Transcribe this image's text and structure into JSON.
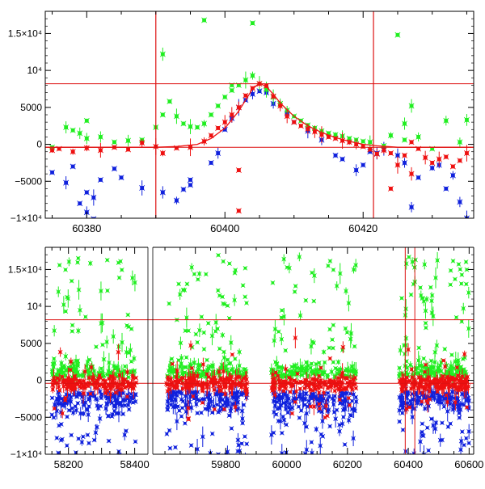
{
  "colors": {
    "green": "#22ee22",
    "red": "#ee1111",
    "blue": "#1122dd",
    "axis": "#000000",
    "refline": "#dd1111"
  },
  "chart_data": [
    {
      "type": "scatter",
      "panel": "top",
      "xlim": [
        60374,
        60436
      ],
      "ylim": [
        -10000,
        18000
      ],
      "x_ticks": [
        60380,
        60400,
        60420
      ],
      "x_tick_labels": [
        "60380",
        "60400",
        "60420"
      ],
      "y_ticks": [
        -10000,
        -5000,
        0,
        5000,
        10000,
        15000
      ],
      "y_tick_labels": [
        "−1×10⁴",
        "−5000",
        "0",
        "5000",
        "10⁴",
        "1.5×10⁴"
      ],
      "hlines": [
        8200,
        -400
      ],
      "vlines": [
        60390,
        60421.5
      ],
      "model_curve": {
        "x": [
          60374,
          60380,
          60385,
          60390,
          60393,
          60396,
          60398,
          60400,
          60402,
          60403,
          60404,
          60405,
          60406,
          60407,
          60408,
          60410,
          60412,
          60414,
          60416,
          60418,
          60420,
          60422,
          60425,
          60430,
          60436
        ],
        "y": [
          -400,
          -400,
          -400,
          -400,
          -300,
          0,
          800,
          2200,
          4500,
          6000,
          7500,
          8300,
          7800,
          6800,
          5600,
          3800,
          2500,
          1600,
          900,
          400,
          0,
          -200,
          -400,
          -400,
          -400
        ]
      },
      "series": [
        {
          "color": "green",
          "x": [
            60375,
            60377,
            60379,
            60380,
            60382,
            60384,
            60386,
            60388,
            60390,
            60391,
            60392,
            60393,
            60394,
            60395,
            60396,
            60397,
            60398,
            60399,
            60400,
            60401,
            60402,
            60403,
            60404,
            60405,
            60406,
            60407,
            60408,
            60409,
            60410,
            60411,
            60412,
            60413,
            60414,
            60415,
            60416,
            60417,
            60418,
            60419,
            60420,
            60421,
            60423,
            60425,
            60426,
            60427,
            60428,
            60430,
            60432,
            60434,
            60435,
            60397,
            60401,
            60404,
            60391,
            60378,
            60380,
            60424,
            60426
          ],
          "y": [
            -400,
            2300,
            1500,
            3200,
            1000,
            300,
            500,
            600,
            2300,
            12200,
            5800,
            3800,
            2800,
            2400,
            2300,
            2800,
            4000,
            5200,
            6400,
            7300,
            8000,
            8700,
            9300,
            8200,
            7400,
            6400,
            5500,
            4600,
            3800,
            3200,
            2600,
            2200,
            1800,
            1500,
            1300,
            1100,
            800,
            600,
            400,
            300,
            -200,
            14800,
            2800,
            5200,
            1000,
            -600,
            3200,
            300,
            3300,
            16800,
            8000,
            16400,
            4000,
            1900,
            800,
            1200,
            600
          ]
        },
        {
          "color": "red",
          "x": [
            60375,
            60376,
            60378,
            60380,
            60382,
            60384,
            60386,
            60388,
            60390,
            60391,
            60393,
            60395,
            60397,
            60398,
            60399,
            60400,
            60401,
            60402,
            60402,
            60402,
            60403,
            60404,
            60405,
            60406,
            60407,
            60408,
            60409,
            60410,
            60411,
            60412,
            60413,
            60414,
            60415,
            60416,
            60417,
            60418,
            60419,
            60420,
            60421,
            60422,
            60423,
            60424,
            60425,
            60426,
            60427,
            60428,
            60429,
            60430,
            60431,
            60432,
            60433,
            60434,
            60435,
            60424,
            60427
          ],
          "y": [
            -800,
            -600,
            -1000,
            -500,
            -800,
            -400,
            -700,
            200,
            -300,
            -1200,
            -500,
            -400,
            400,
            1200,
            2200,
            3000,
            4000,
            5000,
            -3500,
            -9000,
            6600,
            7600,
            8200,
            7900,
            6500,
            5200,
            3800,
            3000,
            2500,
            2100,
            1700,
            1300,
            1000,
            800,
            500,
            300,
            0,
            -300,
            -700,
            -1300,
            -800,
            -1200,
            -2800,
            -1500,
            300,
            -600,
            -1800,
            -2500,
            -2000,
            -1700,
            -3000,
            -2200,
            -1200,
            -6000,
            -4000
          ]
        },
        {
          "color": "blue",
          "x": [
            60375,
            60377,
            60378,
            60379,
            60380,
            60381,
            60382,
            60384,
            60385,
            60388,
            60391,
            60393,
            60394,
            60395,
            60398,
            60399,
            60400,
            60401,
            60402,
            60403,
            60404,
            60405,
            60406,
            60407,
            60409,
            60410,
            60412,
            60414,
            60416,
            60417,
            60419,
            60420,
            60421,
            60422,
            60423,
            60425,
            60426,
            60427,
            60428,
            60430,
            60431,
            60432,
            60433,
            60434,
            60435,
            60380,
            60381,
            60395
          ],
          "y": [
            -3800,
            -5200,
            -3000,
            -8000,
            -6500,
            -7200,
            -4800,
            -3300,
            -4500,
            -5900,
            -6500,
            -7600,
            -6100,
            -4800,
            -2500,
            -1200,
            2000,
            3500,
            5000,
            6000,
            6800,
            7200,
            7000,
            5500,
            4200,
            3000,
            1800,
            600,
            -1500,
            -2000,
            -3500,
            -2800,
            -1000,
            -1200,
            -600,
            -1500,
            -2500,
            -8500,
            -4500,
            -3200,
            -2800,
            -6000,
            -4200,
            -7800,
            -10000,
            -9200,
            -10100,
            -5500
          ]
        }
      ]
    },
    {
      "type": "scatter",
      "panel": "bottom",
      "xlim": [
        58130,
        60615
      ],
      "ylim": [
        -10000,
        18000
      ],
      "x_axis_break": [
        58440,
        59560
      ],
      "x_ticks": [
        58200,
        58300,
        58400,
        59700,
        59800,
        60000,
        60200,
        60400,
        60600
      ],
      "x_tick_labels": [
        "58200",
        "",
        "58400",
        "",
        "59800",
        "60000",
        "60200",
        "60400",
        "60600"
      ],
      "y_ticks": [
        -10000,
        -5000,
        0,
        5000,
        10000,
        15000
      ],
      "y_tick_labels": [
        "−1×10⁴",
        "−5000",
        "0",
        "5000",
        "10⁴",
        "1.5×10⁴"
      ],
      "hlines": [
        8200,
        -400
      ],
      "vlines": [
        60390,
        60421.5
      ],
      "seasons": [
        [
          58150,
          58405
        ],
        [
          59605,
          59870
        ],
        [
          59950,
          60230
        ],
        [
          60370,
          60600
        ]
      ]
    }
  ]
}
